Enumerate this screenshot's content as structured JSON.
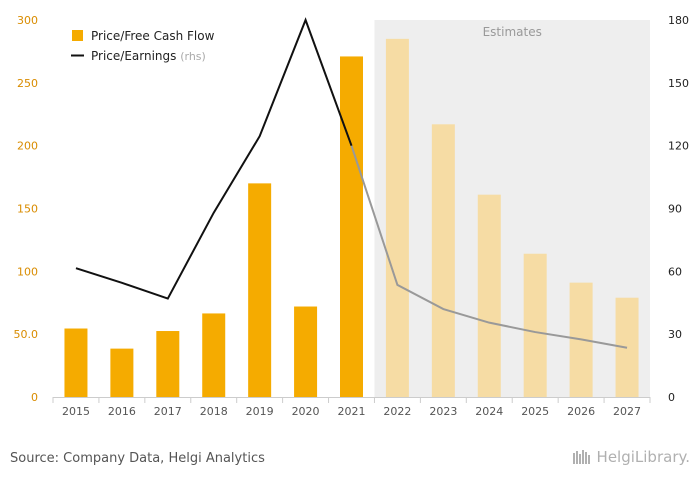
{
  "chart_data": {
    "type": "bar",
    "categories": [
      "2015",
      "2016",
      "2017",
      "2018",
      "2019",
      "2020",
      "2021",
      "2022",
      "2023",
      "2024",
      "2025",
      "2026",
      "2027"
    ],
    "series": [
      {
        "name": "Price/Free Cash Flow",
        "type": "bar",
        "axis": "left",
        "values": [
          54.5,
          38.5,
          52.5,
          66.5,
          170,
          72,
          271,
          285,
          217,
          161,
          114,
          91,
          79
        ],
        "color": "#f5ab00",
        "estimate_color": "#f6dca4"
      },
      {
        "name": "Price/Earnings",
        "name_suffix": "(rhs)",
        "type": "line",
        "axis": "right",
        "values": [
          61.5,
          54.5,
          47,
          88,
          124.5,
          180,
          120,
          53.5,
          42,
          35.5,
          31,
          27.5,
          23.5
        ],
        "color": "#111111",
        "estimate_color": "#999999"
      }
    ],
    "estimates_from": "2022",
    "estimates_label": "Estimates",
    "y_left": {
      "min": 0,
      "max": 300,
      "ticks": [
        "0",
        "50.0",
        "100",
        "150",
        "200",
        "250",
        "300"
      ]
    },
    "y_right": {
      "min": 0,
      "max": 180,
      "ticks": [
        "0",
        "30",
        "60",
        "90",
        "120",
        "150",
        "180"
      ]
    },
    "legend_position": "top-left",
    "grid": false
  },
  "footer": {
    "source": "Source: Company Data, Helgi Analytics",
    "logo_text": "HelgiLibrary."
  }
}
